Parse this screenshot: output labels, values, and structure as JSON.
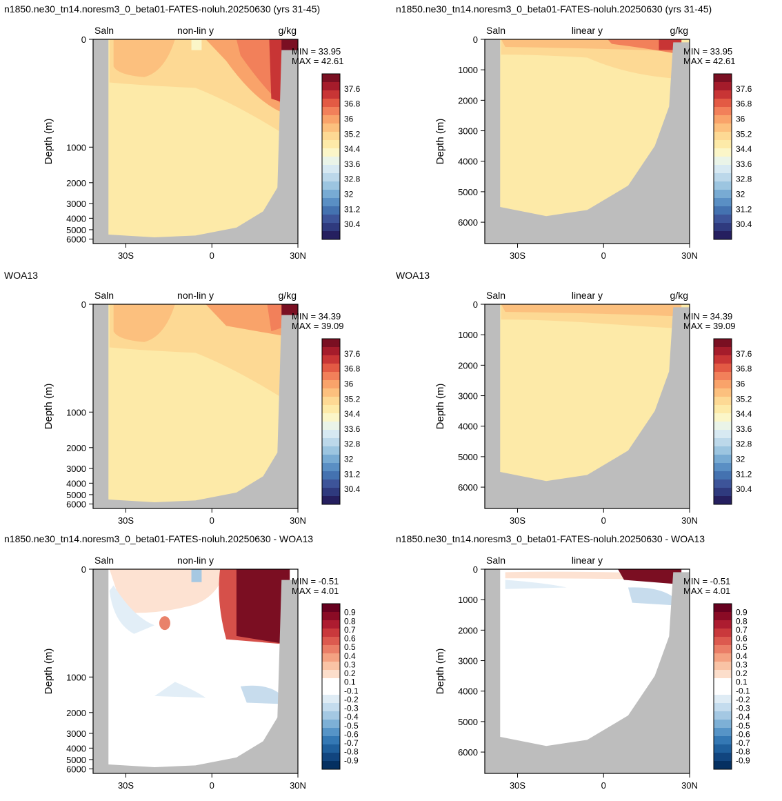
{
  "figure": {
    "row_titles": [
      "n1850.ne30_tn14.noresm3_0_beta01-FATES-noluh.20250630 (yrs 31-45)",
      "WOA13",
      "n1850.ne30_tn14.noresm3_0_beta01-FATES-noluh.20250630 - WOA13"
    ]
  },
  "chart_data": [
    {
      "type": "heatmap",
      "row": 0,
      "col": 0,
      "variable": "Saln",
      "scale": "non-lin y",
      "units": "g/kg",
      "ylabel": "Depth (m)",
      "ytick_labels": [
        "0",
        "1000",
        "2000",
        "3000",
        "4000",
        "5000",
        "6000"
      ],
      "xtick_labels": [
        "30S",
        "0",
        "30N"
      ],
      "min_label": "MIN =  33.95",
      "max_label": "MAX =  42.61",
      "colorbar_levels": [
        "37.6",
        "36.8",
        "36",
        "35.2",
        "34.4",
        "33.6",
        "32.8",
        "32",
        "31.2",
        "30.4"
      ]
    },
    {
      "type": "heatmap",
      "row": 0,
      "col": 1,
      "variable": "Saln",
      "scale": "linear y",
      "units": "g/kg",
      "ylabel": "Depth (m)",
      "ytick_labels": [
        "0",
        "1000",
        "2000",
        "3000",
        "4000",
        "5000",
        "6000"
      ],
      "xtick_labels": [
        "30S",
        "0",
        "30N"
      ],
      "min_label": "MIN =  33.95",
      "max_label": "MAX =  42.61",
      "colorbar_levels": [
        "37.6",
        "36.8",
        "36",
        "35.2",
        "34.4",
        "33.6",
        "32.8",
        "32",
        "31.2",
        "30.4"
      ]
    },
    {
      "type": "heatmap",
      "row": 1,
      "col": 0,
      "variable": "Saln",
      "scale": "non-lin y",
      "units": "g/kg",
      "ylabel": "Depth (m)",
      "ytick_labels": [
        "0",
        "1000",
        "2000",
        "3000",
        "4000",
        "5000",
        "6000"
      ],
      "xtick_labels": [
        "30S",
        "0",
        "30N"
      ],
      "min_label": "MIN =  34.39",
      "max_label": "MAX =  39.09",
      "colorbar_levels": [
        "37.6",
        "36.8",
        "36",
        "35.2",
        "34.4",
        "33.6",
        "32.8",
        "32",
        "31.2",
        "30.4"
      ]
    },
    {
      "type": "heatmap",
      "row": 1,
      "col": 1,
      "variable": "Saln",
      "scale": "linear y",
      "units": "g/kg",
      "ylabel": "Depth (m)",
      "ytick_labels": [
        "0",
        "1000",
        "2000",
        "3000",
        "4000",
        "5000",
        "6000"
      ],
      "xtick_labels": [
        "30S",
        "0",
        "30N"
      ],
      "min_label": "MIN =  34.39",
      "max_label": "MAX =  39.09",
      "colorbar_levels": [
        "37.6",
        "36.8",
        "36",
        "35.2",
        "34.4",
        "33.6",
        "32.8",
        "32",
        "31.2",
        "30.4"
      ]
    },
    {
      "type": "heatmap",
      "row": 2,
      "col": 0,
      "variable": "Saln",
      "scale": "non-lin y",
      "units": "",
      "ylabel": "Depth (m)",
      "ytick_labels": [
        "0",
        "1000",
        "2000",
        "3000",
        "4000",
        "5000",
        "6000"
      ],
      "xtick_labels": [
        "30S",
        "0",
        "30N"
      ],
      "min_label": "MIN =  -0.51",
      "max_label": "MAX =   4.01",
      "colorbar_levels": [
        "0.9",
        "0.8",
        "0.7",
        "0.6",
        "0.5",
        "0.4",
        "0.3",
        "0.2",
        "0.1",
        "-0.1",
        "-0.2",
        "-0.3",
        "-0.4",
        "-0.5",
        "-0.6",
        "-0.7",
        "-0.8",
        "-0.9"
      ]
    },
    {
      "type": "heatmap",
      "row": 2,
      "col": 1,
      "variable": "Saln",
      "scale": "linear y",
      "units": "",
      "ylabel": "Depth (m)",
      "ytick_labels": [
        "0",
        "1000",
        "2000",
        "3000",
        "4000",
        "5000",
        "6000"
      ],
      "xtick_labels": [
        "30S",
        "0",
        "30N"
      ],
      "min_label": "MIN =  -0.51",
      "max_label": "MAX =   4.01",
      "colorbar_levels": [
        "0.9",
        "0.8",
        "0.7",
        "0.6",
        "0.5",
        "0.4",
        "0.3",
        "0.2",
        "0.1",
        "-0.1",
        "-0.2",
        "-0.3",
        "-0.4",
        "-0.5",
        "-0.6",
        "-0.7",
        "-0.8",
        "-0.9"
      ]
    }
  ]
}
